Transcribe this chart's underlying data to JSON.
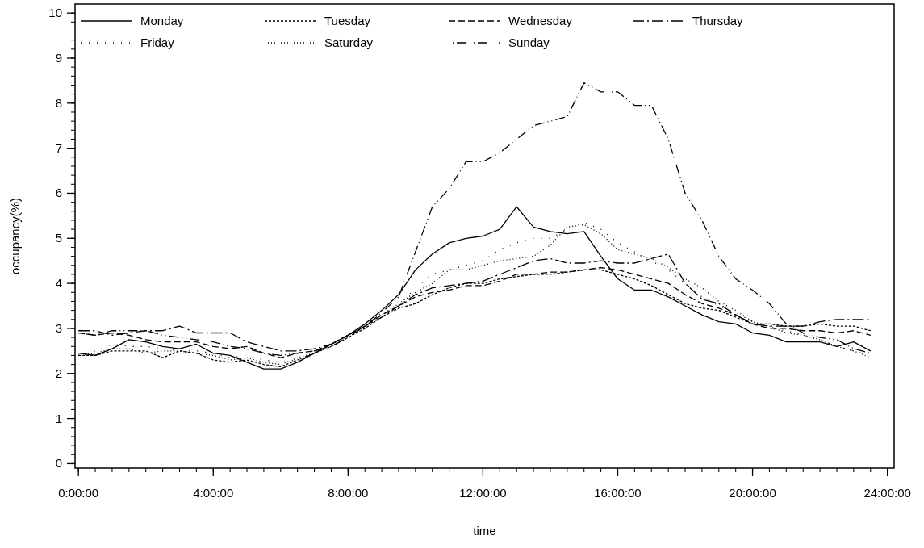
{
  "chart_data": {
    "type": "line",
    "xlabel": "time",
    "ylabel": "occupancy(%)",
    "x": [
      0,
      0.5,
      1,
      1.5,
      2,
      2.5,
      3,
      3.5,
      4,
      4.5,
      5,
      5.5,
      6,
      6.5,
      7,
      7.5,
      8,
      8.5,
      9,
      9.5,
      10,
      10.5,
      11,
      11.5,
      12,
      12.5,
      13,
      13.5,
      14,
      14.5,
      15,
      15.5,
      16,
      16.5,
      17,
      17.5,
      18,
      18.5,
      19,
      19.5,
      20,
      20.5,
      21,
      21.5,
      22,
      22.5,
      23,
      23.5
    ],
    "xlim": [
      -0.1,
      24.2
    ],
    "xticks": [
      {
        "value": 0,
        "label": "0:00:00"
      },
      {
        "value": 4,
        "label": "4:00:00"
      },
      {
        "value": 8,
        "label": "8:00:00"
      },
      {
        "value": 12,
        "label": "12:00:00"
      },
      {
        "value": 16,
        "label": "16:00:00"
      },
      {
        "value": 20,
        "label": "20:00:00"
      },
      {
        "value": 24,
        "label": "24:00:00"
      }
    ],
    "ylim": [
      -0.1,
      10.2
    ],
    "yticks": [
      0,
      1,
      2,
      3,
      4,
      5,
      6,
      7,
      8,
      9,
      10
    ],
    "legend": "top",
    "grid": false,
    "marker": "none",
    "series": [
      {
        "name": "Monday",
        "color": "#000000",
        "line_style": "solid",
        "values": [
          2.45,
          2.4,
          2.55,
          2.75,
          2.7,
          2.6,
          2.55,
          2.65,
          2.45,
          2.4,
          2.25,
          2.1,
          2.1,
          2.25,
          2.45,
          2.65,
          2.85,
          3.1,
          3.4,
          3.75,
          4.3,
          4.65,
          4.9,
          5.0,
          5.05,
          5.2,
          5.7,
          5.25,
          5.15,
          5.1,
          5.15,
          4.6,
          4.1,
          3.85,
          3.85,
          3.7,
          3.5,
          3.3,
          3.15,
          3.1,
          2.9,
          2.85,
          2.7,
          2.7,
          2.7,
          2.6,
          2.7,
          2.5
        ]
      },
      {
        "name": "Tuesday",
        "color": "#000000",
        "line_style": "dashed",
        "values": [
          2.4,
          2.4,
          2.5,
          2.5,
          2.5,
          2.35,
          2.5,
          2.45,
          2.3,
          2.25,
          2.3,
          2.2,
          2.15,
          2.3,
          2.45,
          2.6,
          2.8,
          3.0,
          3.25,
          3.45,
          3.55,
          3.75,
          3.9,
          4.0,
          4.0,
          4.1,
          4.15,
          4.2,
          4.2,
          4.25,
          4.3,
          4.3,
          4.2,
          4.1,
          3.95,
          3.75,
          3.55,
          3.45,
          3.4,
          3.25,
          3.1,
          3.1,
          3.05,
          3.05,
          3.1,
          3.05,
          3.05,
          2.95
        ]
      },
      {
        "name": "Wednesday",
        "color": "#000000",
        "line_style": "longdashed",
        "values": [
          2.9,
          2.85,
          2.9,
          2.85,
          2.75,
          2.7,
          2.7,
          2.7,
          2.6,
          2.55,
          2.6,
          2.45,
          2.35,
          2.45,
          2.5,
          2.65,
          2.85,
          3.05,
          3.3,
          3.5,
          3.7,
          3.8,
          3.85,
          3.95,
          3.95,
          4.05,
          4.2,
          4.2,
          4.25,
          4.25,
          4.3,
          4.35,
          4.3,
          4.2,
          4.1,
          4.0,
          3.75,
          3.55,
          3.45,
          3.3,
          3.1,
          3.0,
          3.0,
          2.95,
          2.95,
          2.9,
          2.95,
          2.85
        ]
      },
      {
        "name": "Thursday",
        "color": "#000000",
        "line_style": "dashdot",
        "values": [
          2.95,
          2.95,
          2.85,
          2.9,
          2.95,
          2.95,
          3.05,
          2.9,
          2.9,
          2.9,
          2.7,
          2.6,
          2.5,
          2.5,
          2.55,
          2.65,
          2.85,
          3.05,
          3.25,
          3.5,
          3.75,
          3.9,
          3.95,
          4.0,
          4.05,
          4.2,
          4.35,
          4.5,
          4.55,
          4.45,
          4.45,
          4.5,
          4.45,
          4.45,
          4.55,
          4.65,
          4.0,
          3.65,
          3.55,
          3.3,
          3.1,
          3.05,
          3.05,
          3.05,
          3.15,
          3.2,
          3.2,
          3.2
        ]
      },
      {
        "name": "Friday",
        "color": "#000000",
        "line_style": "loosedotted",
        "values": [
          2.4,
          2.5,
          2.65,
          2.6,
          2.6,
          2.55,
          2.5,
          2.5,
          2.45,
          2.35,
          2.4,
          2.3,
          2.25,
          2.3,
          2.45,
          2.6,
          2.85,
          3.1,
          3.3,
          3.5,
          3.9,
          4.2,
          4.3,
          4.4,
          4.5,
          4.75,
          4.9,
          5.0,
          5.0,
          5.2,
          5.35,
          5.2,
          4.9,
          4.7,
          4.5,
          4.3,
          4.0,
          3.7,
          3.5,
          3.35,
          3.15,
          3.0,
          2.95,
          2.85,
          2.75,
          2.6,
          2.5,
          2.4
        ]
      },
      {
        "name": "Saturday",
        "color": "#000000",
        "line_style": "dotted",
        "values": [
          2.4,
          2.45,
          2.55,
          2.55,
          2.45,
          2.5,
          2.5,
          2.45,
          2.4,
          2.3,
          2.35,
          2.25,
          2.2,
          2.35,
          2.45,
          2.65,
          2.85,
          3.05,
          3.3,
          3.55,
          3.8,
          4.0,
          4.3,
          4.3,
          4.4,
          4.5,
          4.55,
          4.6,
          4.85,
          5.25,
          5.3,
          5.1,
          4.75,
          4.65,
          4.55,
          4.35,
          4.1,
          3.9,
          3.6,
          3.4,
          3.15,
          3.05,
          2.9,
          2.85,
          2.75,
          2.6,
          2.5,
          2.35
        ]
      },
      {
        "name": "Sunday",
        "color": "#000000",
        "line_style": "dashdotdot",
        "values": [
          2.9,
          2.85,
          2.95,
          2.95,
          2.95,
          2.85,
          2.8,
          2.75,
          2.7,
          2.6,
          2.55,
          2.45,
          2.4,
          2.45,
          2.5,
          2.6,
          2.8,
          3.05,
          3.35,
          3.7,
          4.7,
          5.7,
          6.1,
          6.7,
          6.7,
          6.9,
          7.2,
          7.5,
          7.6,
          7.7,
          8.45,
          8.25,
          8.25,
          7.95,
          7.95,
          7.2,
          6.0,
          5.4,
          4.6,
          4.1,
          3.85,
          3.55,
          3.1,
          2.9,
          2.8,
          2.75,
          2.55,
          2.45
        ]
      }
    ]
  }
}
